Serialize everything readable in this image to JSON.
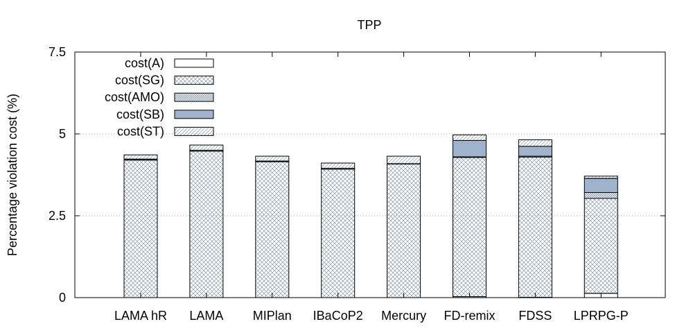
{
  "chart_data": {
    "type": "bar",
    "stacked": true,
    "title": "TPP",
    "xlabel": "",
    "ylabel": "Percentage violation cost (%)",
    "ylim": [
      0,
      7.5
    ],
    "yticks": [
      "0",
      "2.5",
      "5",
      "7.5"
    ],
    "ytick_values": [
      0,
      2.5,
      5,
      7.5
    ],
    "grid": true,
    "legend_position": "top-left",
    "categories": [
      "LAMA hR",
      "LAMA",
      "MIPlan",
      "IBaCoP2",
      "Mercury",
      "FD-remix",
      "FDSS",
      "LPRPG-P"
    ],
    "series": [
      {
        "name": "cost(A)",
        "fill": "#ffffff",
        "pattern": "none",
        "values": [
          0,
          0,
          0,
          0,
          0,
          0.03,
          0.01,
          0.13
        ]
      },
      {
        "name": "cost(SG)",
        "fill": "#ffffff",
        "pattern": "cross",
        "values": [
          4.2,
          4.47,
          4.15,
          3.92,
          4.08,
          4.25,
          4.28,
          2.9
        ]
      },
      {
        "name": "cost(AMO)",
        "fill": "#ffffff",
        "pattern": "dense",
        "values": [
          0.03,
          0.03,
          0.02,
          0.03,
          0.01,
          0.02,
          0.03,
          0.18
        ]
      },
      {
        "name": "cost(SB)",
        "fill": "#9fb3cc",
        "pattern": "none",
        "values": [
          0,
          0,
          0,
          0,
          0,
          0.5,
          0.3,
          0.43
        ]
      },
      {
        "name": "cost(ST)",
        "fill": "#ffffff",
        "pattern": "diag",
        "values": [
          0.13,
          0.16,
          0.15,
          0.16,
          0.23,
          0.17,
          0.2,
          0.07
        ]
      }
    ]
  }
}
